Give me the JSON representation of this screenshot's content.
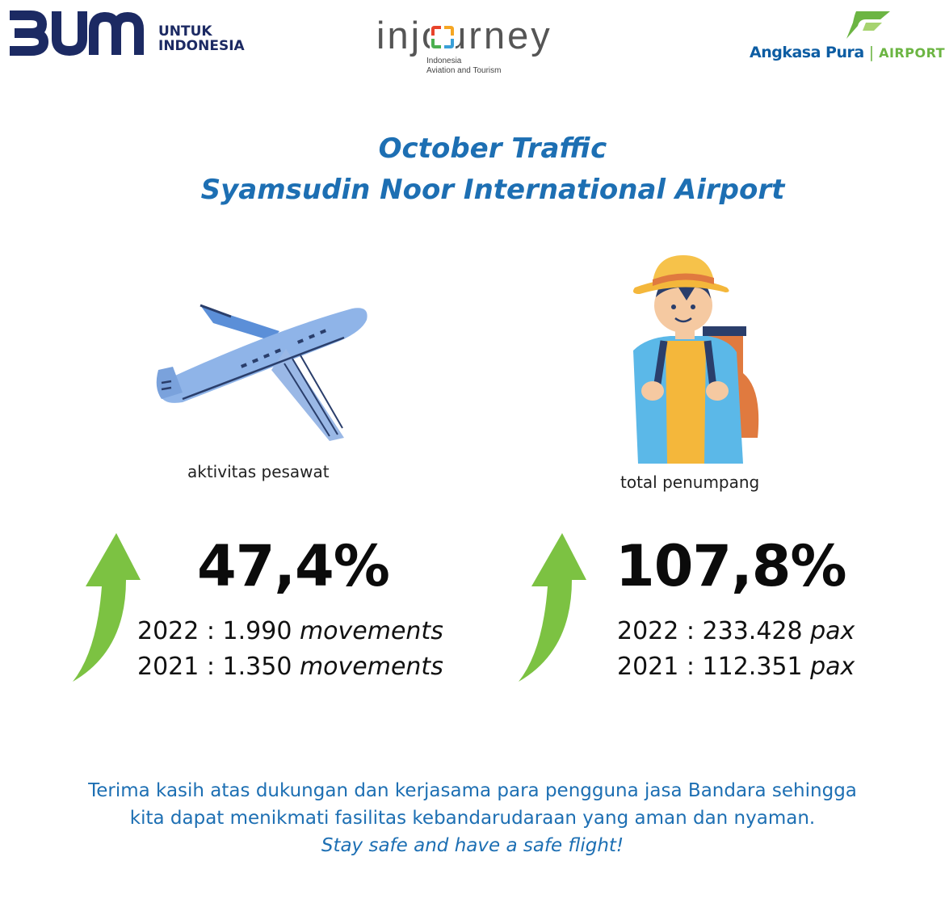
{
  "logos": {
    "bumn": {
      "text_line1": "UNTUK",
      "text_line2": "INDONESIA"
    },
    "injourney": {
      "word": "injourney",
      "sub_line1": "Indonesia",
      "sub_line2": "Aviation and Tourism"
    },
    "angkasa_pura": {
      "name": "Angkasa Pura",
      "divider": "|",
      "airports": "AIRPORTS"
    }
  },
  "title": {
    "line1": "October Traffic",
    "line2": "Syamsudin Noor International Airport"
  },
  "aircraft": {
    "icon": "airplane-illustration",
    "label": "aktivitas pesawat",
    "growth": "47,4%",
    "line_2022_prefix": "2022 : 1.990 ",
    "line_2022_unit": "movements",
    "line_2021_prefix": "2021  : 1.350 ",
    "line_2021_unit": "movements"
  },
  "passengers": {
    "icon": "traveler-illustration",
    "label": "total penumpang",
    "growth": "107,8%",
    "line_2022_prefix": "2022 : 233.428 ",
    "line_2022_unit": "pax",
    "line_2021_prefix": "2021  : 112.351 ",
    "line_2021_unit": "pax"
  },
  "footer": {
    "line1": "Terima kasih atas dukungan dan kerjasama para pengguna jasa Bandara sehingga",
    "line2": "kita dapat menikmati fasilitas kebandarudaraan yang aman dan nyaman.",
    "line3": "Stay safe and have a safe flight!"
  },
  "colors": {
    "brand_blue": "#1d6fb3",
    "bumn_navy": "#1c2a63",
    "arrow_green": "#7cc242",
    "plane_blue": "#8fb4e8"
  }
}
